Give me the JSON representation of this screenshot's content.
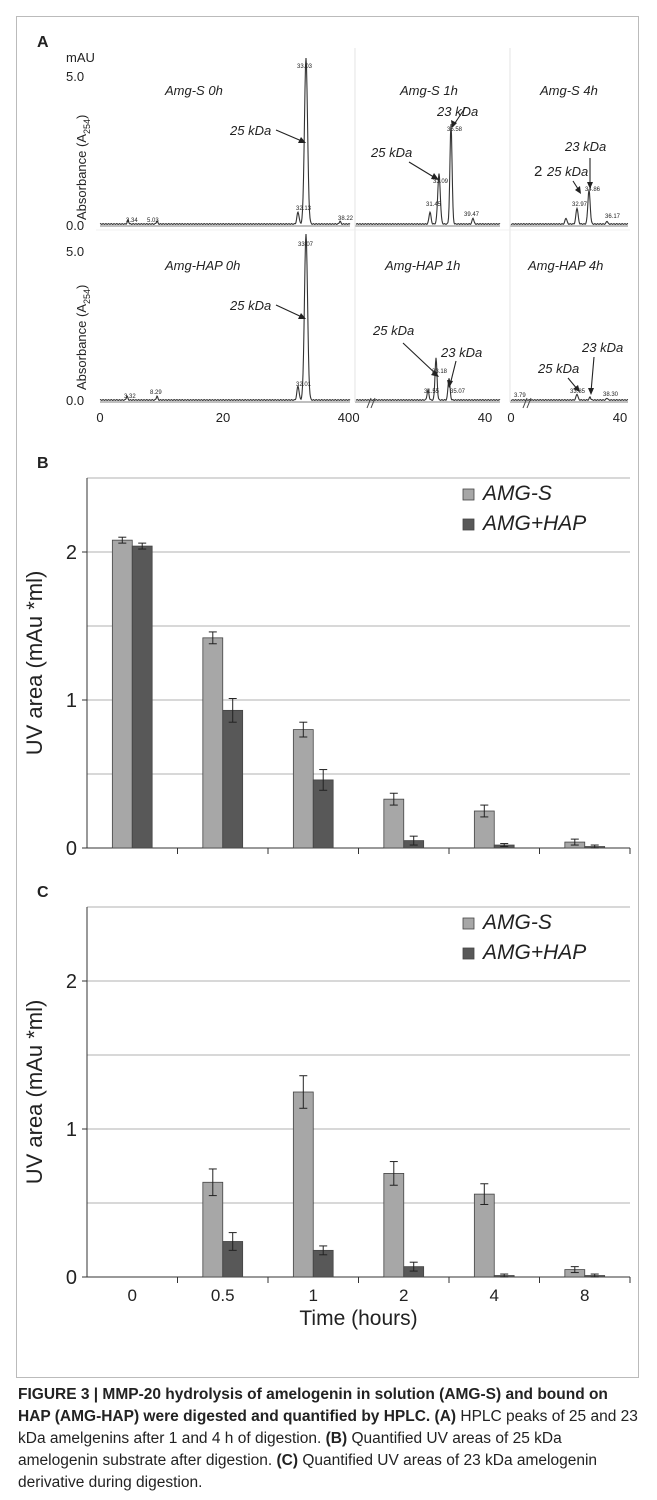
{
  "panel_labels": {
    "a": "A",
    "b": "B",
    "c": "C"
  },
  "panel_a": {
    "unit": "mAU",
    "ylabel": "Absorbance (A254)",
    "yticks": [
      "5.0",
      "0.0"
    ],
    "xticks_main": [
      "0",
      "20",
      "40"
    ],
    "xticks_side": [
      "0",
      "40"
    ],
    "tiles": [
      {
        "title": "Amg-S 0h",
        "labels": [
          "25 kDa"
        ],
        "peak_labels": [
          "33.03",
          "32.13",
          "3.34",
          "5.03",
          "38.22"
        ]
      },
      {
        "title": "Amg-S 1h",
        "labels": [
          "25 kDa",
          "23 kDa"
        ],
        "peak_labels": [
          "35.58",
          "33.09",
          "31.45",
          "39.47"
        ]
      },
      {
        "title": "Amg-S 4h",
        "labels": [
          "25 kDa",
          "23 kDa",
          "2"
        ],
        "peak_labels": [
          "34.86",
          "32.97",
          "36.17"
        ]
      },
      {
        "title": "Amg-HAP 0h",
        "labels": [
          "25 kDa"
        ],
        "peak_labels": [
          "33.07",
          "32.01",
          "3.32",
          "8.29"
        ]
      },
      {
        "title": "Amg-HAP 1h",
        "labels": [
          "25 kDa",
          "23 kDa"
        ],
        "peak_labels": [
          "33.18",
          "35.07",
          "31.55"
        ]
      },
      {
        "title": "Amg-HAP 4h",
        "labels": [
          "25 kDa",
          "23 kDa"
        ],
        "peak_labels": [
          "33.85",
          "38.30",
          "3.79"
        ]
      }
    ]
  },
  "chart_data": [
    {
      "type": "bar",
      "panel": "B",
      "categories": [
        "0",
        "0.5",
        "1",
        "2",
        "4",
        "8"
      ],
      "ylabel": "UV area (mAu *ml)",
      "ylim": [
        0,
        2.5
      ],
      "yticks": [
        "0",
        "1",
        "2"
      ],
      "series": [
        {
          "name": "AMG-S",
          "values": [
            2.08,
            1.42,
            0.8,
            0.33,
            0.25,
            0.04
          ],
          "errors": [
            0.02,
            0.04,
            0.05,
            0.04,
            0.04,
            0.02
          ],
          "color": "#a7a7a7"
        },
        {
          "name": "AMG+HAP",
          "values": [
            2.04,
            0.93,
            0.46,
            0.05,
            0.02,
            0.01
          ],
          "errors": [
            0.02,
            0.08,
            0.07,
            0.03,
            0.01,
            0.01
          ],
          "color": "#585858"
        }
      ],
      "legend": "top-right",
      "grid": true
    },
    {
      "type": "bar",
      "panel": "C",
      "categories": [
        "0",
        "0.5",
        "1",
        "2",
        "4",
        "8"
      ],
      "xlabel": "Time (hours)",
      "ylabel": "UV area (mAu *ml)",
      "ylim": [
        0,
        2.5
      ],
      "yticks": [
        "0",
        "1",
        "2"
      ],
      "series": [
        {
          "name": "AMG-S",
          "values": [
            0,
            0.64,
            1.25,
            0.7,
            0.56,
            0.05
          ],
          "errors": [
            0,
            0.09,
            0.11,
            0.08,
            0.07,
            0.02
          ],
          "color": "#a7a7a7"
        },
        {
          "name": "AMG+HAP",
          "values": [
            0,
            0.24,
            0.18,
            0.07,
            0.01,
            0.01
          ],
          "errors": [
            0,
            0.06,
            0.03,
            0.03,
            0.01,
            0.01
          ],
          "color": "#585858"
        }
      ],
      "legend": "top-right",
      "grid": true
    }
  ],
  "caption": {
    "title": "FIGURE 3 | MMP-20 hydrolysis of amelogenin in solution (AMG-S) and bound on HAP (AMG-HAP) were digested and quantified by HPLC.",
    "a_tag": "(A)",
    "a_text": "HPLC peaks of 25 and 23 kDa amelgenins after 1 and 4 h of digestion.",
    "b_tag": "(B)",
    "b_text": "Quantified UV areas of 25 kDa amelogenin substrate after digestion.",
    "c_tag": "(C)",
    "c_text": "Quantified UV areas of 23 kDa amelogenin derivative during digestion."
  }
}
